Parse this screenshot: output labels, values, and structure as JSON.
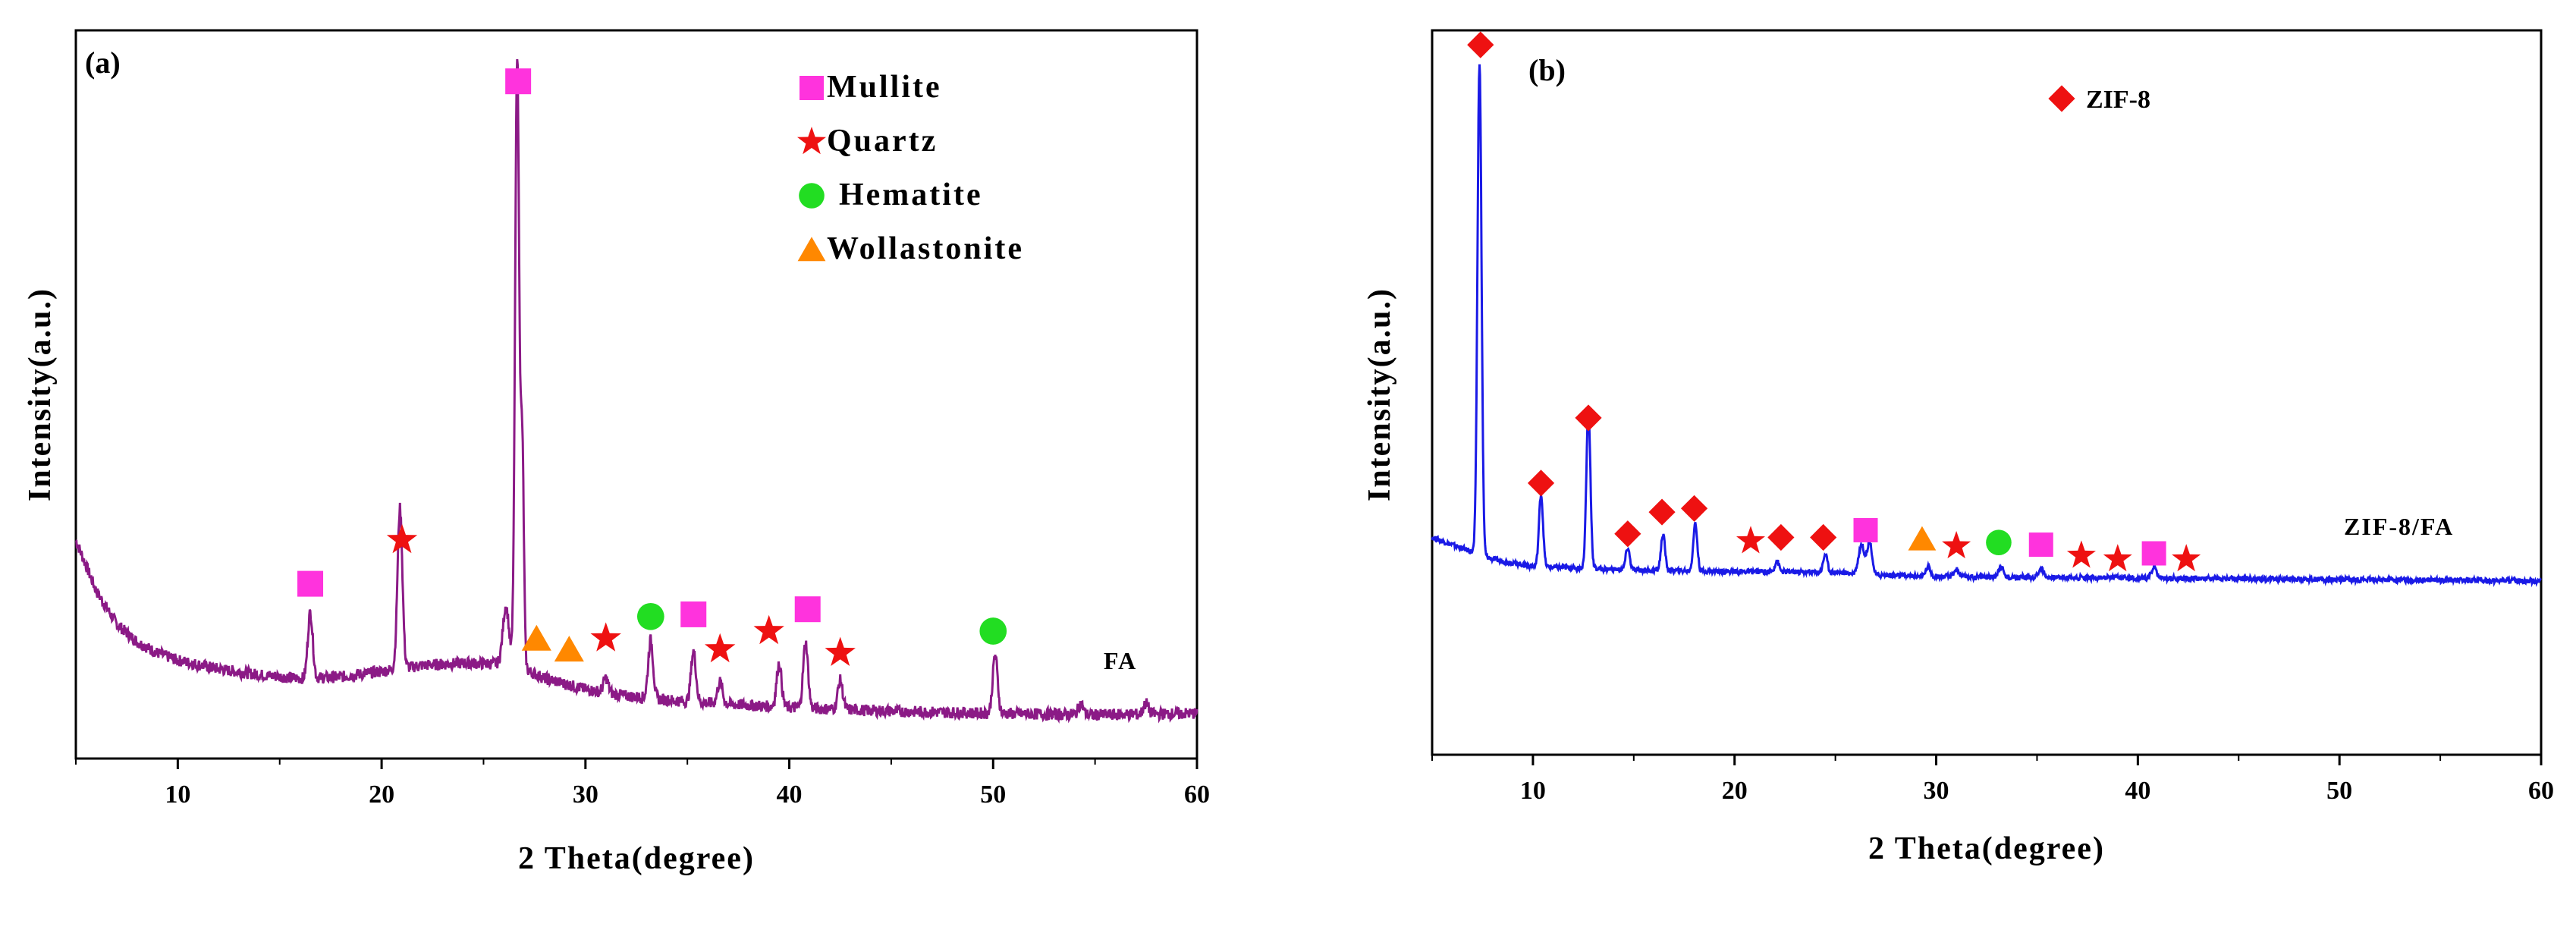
{
  "chart_data": [
    {
      "id": "a",
      "type": "line",
      "panel_label": "(a)",
      "title": "",
      "xlabel": "2 Theta(degree)",
      "ylabel": "Intensity(a.u.)",
      "xlim": [
        5,
        60
      ],
      "ylim": [
        0,
        100
      ],
      "xticks": [
        10,
        20,
        30,
        40,
        50,
        60
      ],
      "curve_label": "FA",
      "line_color": "#8b1a86",
      "grid": false,
      "legend_position": "top-right",
      "legend": [
        {
          "label": "Mullite",
          "marker": "square",
          "color": "#ff33dd"
        },
        {
          "label": "Quartz",
          "marker": "star",
          "color": "#ee1111"
        },
        {
          "label": "Hematite",
          "marker": "circle",
          "color": "#22dd22"
        },
        {
          "label": "Wollastonite",
          "marker": "triangle",
          "color": "#ff8800"
        }
      ],
      "baseline": [
        [
          5,
          30
        ],
        [
          6,
          23
        ],
        [
          7,
          18.5
        ],
        [
          8,
          16
        ],
        [
          9,
          14.5
        ],
        [
          10,
          13.5
        ],
        [
          12,
          12.3
        ],
        [
          14,
          11.5
        ],
        [
          16,
          11
        ],
        [
          18,
          11.2
        ],
        [
          20,
          12
        ],
        [
          22,
          12.8
        ],
        [
          24,
          13.1
        ],
        [
          26,
          13
        ],
        [
          27,
          12.3
        ],
        [
          28,
          11
        ],
        [
          30,
          9.5
        ],
        [
          32,
          8.6
        ],
        [
          35,
          7.8
        ],
        [
          40,
          7
        ],
        [
          45,
          6.5
        ],
        [
          50,
          6.2
        ],
        [
          55,
          6
        ],
        [
          60,
          6.2
        ]
      ],
      "peaks": [
        {
          "x": 16.5,
          "height": 9,
          "width": 0.12
        },
        {
          "x": 20.9,
          "height": 22,
          "width": 0.12
        },
        {
          "x": 26.1,
          "height": 8,
          "width": 0.15
        },
        {
          "x": 26.65,
          "height": 84,
          "width": 0.1
        },
        {
          "x": 26.9,
          "height": 30,
          "width": 0.08
        },
        {
          "x": 31.0,
          "height": 2,
          "width": 0.12
        },
        {
          "x": 33.2,
          "height": 8,
          "width": 0.12
        },
        {
          "x": 35.3,
          "height": 7,
          "width": 0.12
        },
        {
          "x": 36.6,
          "height": 3,
          "width": 0.12
        },
        {
          "x": 39.5,
          "height": 6,
          "width": 0.12
        },
        {
          "x": 40.8,
          "height": 9,
          "width": 0.12
        },
        {
          "x": 42.5,
          "height": 4,
          "width": 0.12
        },
        {
          "x": 50.1,
          "height": 8,
          "width": 0.12
        },
        {
          "x": 54.3,
          "height": 1.5,
          "width": 0.12
        },
        {
          "x": 57.5,
          "height": 1.5,
          "width": 0.12
        }
      ],
      "markers": [
        {
          "x": 16.5,
          "y": 24,
          "marker": "square",
          "color": "#ff33dd"
        },
        {
          "x": 21.0,
          "y": 30,
          "marker": "star",
          "color": "#ee1111"
        },
        {
          "x": 26.7,
          "y": 93,
          "marker": "square",
          "color": "#ff33dd"
        },
        {
          "x": 27.6,
          "y": 16.5,
          "marker": "triangle",
          "color": "#ff8800"
        },
        {
          "x": 29.2,
          "y": 15,
          "marker": "triangle",
          "color": "#ff8800"
        },
        {
          "x": 31.0,
          "y": 16.5,
          "marker": "star",
          "color": "#ee1111"
        },
        {
          "x": 33.2,
          "y": 19.5,
          "marker": "circle",
          "color": "#22dd22"
        },
        {
          "x": 35.3,
          "y": 19.8,
          "marker": "square",
          "color": "#ff33dd"
        },
        {
          "x": 36.6,
          "y": 15,
          "marker": "star",
          "color": "#ee1111"
        },
        {
          "x": 39.0,
          "y": 17.5,
          "marker": "star",
          "color": "#ee1111"
        },
        {
          "x": 40.9,
          "y": 20.5,
          "marker": "square",
          "color": "#ff33dd"
        },
        {
          "x": 42.5,
          "y": 14.5,
          "marker": "star",
          "color": "#ee1111"
        },
        {
          "x": 50.0,
          "y": 17.5,
          "marker": "circle",
          "color": "#22dd22"
        }
      ]
    },
    {
      "id": "b",
      "type": "line",
      "panel_label": "(b)",
      "title": "",
      "xlabel": "2 Theta(degree)",
      "ylabel": "Intensity(a.u.)",
      "xlim": [
        5,
        60
      ],
      "ylim": [
        0,
        100
      ],
      "xticks": [
        10,
        20,
        30,
        40,
        50,
        60
      ],
      "curve_label": "ZIF-8/FA",
      "line_color": "#1a1ae6",
      "grid": false,
      "legend_position": "top-right",
      "legend": [
        {
          "label": "ZIF-8",
          "marker": "diamond",
          "color": "#ee1111"
        }
      ],
      "baseline": [
        [
          5,
          30
        ],
        [
          6,
          29
        ],
        [
          8,
          27
        ],
        [
          10,
          26
        ],
        [
          15,
          25.5
        ],
        [
          20,
          25.3
        ],
        [
          25,
          25.2
        ],
        [
          27,
          24.8
        ],
        [
          30,
          24.6
        ],
        [
          40,
          24.4
        ],
        [
          50,
          24.2
        ],
        [
          60,
          24
        ]
      ],
      "peaks": [
        {
          "x": 7.35,
          "height": 68,
          "width": 0.1
        },
        {
          "x": 10.4,
          "height": 10,
          "width": 0.1
        },
        {
          "x": 12.75,
          "height": 22,
          "width": 0.1
        },
        {
          "x": 14.7,
          "height": 3,
          "width": 0.1
        },
        {
          "x": 16.45,
          "height": 5,
          "width": 0.1
        },
        {
          "x": 18.05,
          "height": 6.5,
          "width": 0.1
        },
        {
          "x": 22.1,
          "height": 1.5,
          "width": 0.1
        },
        {
          "x": 24.5,
          "height": 2.5,
          "width": 0.1
        },
        {
          "x": 26.3,
          "height": 4,
          "width": 0.15
        },
        {
          "x": 26.7,
          "height": 4.5,
          "width": 0.12
        },
        {
          "x": 29.6,
          "height": 1.3,
          "width": 0.12
        },
        {
          "x": 31.0,
          "height": 1,
          "width": 0.12
        },
        {
          "x": 33.2,
          "height": 1.5,
          "width": 0.12
        },
        {
          "x": 35.2,
          "height": 1.3,
          "width": 0.12
        },
        {
          "x": 40.8,
          "height": 1.5,
          "width": 0.12
        }
      ],
      "markers": [
        {
          "x": 7.4,
          "y": 98,
          "marker": "diamond",
          "color": "#ee1111"
        },
        {
          "x": 10.4,
          "y": 37.5,
          "marker": "diamond",
          "color": "#ee1111"
        },
        {
          "x": 12.75,
          "y": 46.5,
          "marker": "diamond",
          "color": "#ee1111"
        },
        {
          "x": 14.7,
          "y": 30.5,
          "marker": "diamond",
          "color": "#ee1111"
        },
        {
          "x": 16.4,
          "y": 33.5,
          "marker": "diamond",
          "color": "#ee1111"
        },
        {
          "x": 18.0,
          "y": 34,
          "marker": "diamond",
          "color": "#ee1111"
        },
        {
          "x": 20.8,
          "y": 29.5,
          "marker": "star",
          "color": "#ee1111"
        },
        {
          "x": 22.3,
          "y": 30,
          "marker": "diamond",
          "color": "#ee1111"
        },
        {
          "x": 24.4,
          "y": 30,
          "marker": "diamond",
          "color": "#ee1111"
        },
        {
          "x": 26.5,
          "y": 31,
          "marker": "square",
          "color": "#ff33dd"
        },
        {
          "x": 29.3,
          "y": 29.8,
          "marker": "triangle",
          "color": "#ff8800"
        },
        {
          "x": 31.0,
          "y": 28.8,
          "marker": "star",
          "color": "#ee1111"
        },
        {
          "x": 33.1,
          "y": 29.3,
          "marker": "circle",
          "color": "#22dd22"
        },
        {
          "x": 35.2,
          "y": 29,
          "marker": "square",
          "color": "#ff33dd"
        },
        {
          "x": 37.2,
          "y": 27.5,
          "marker": "star",
          "color": "#ee1111"
        },
        {
          "x": 39.0,
          "y": 27,
          "marker": "star",
          "color": "#ee1111"
        },
        {
          "x": 40.8,
          "y": 27.8,
          "marker": "square",
          "color": "#ff33dd"
        },
        {
          "x": 42.4,
          "y": 27,
          "marker": "star",
          "color": "#ee1111"
        }
      ]
    }
  ]
}
